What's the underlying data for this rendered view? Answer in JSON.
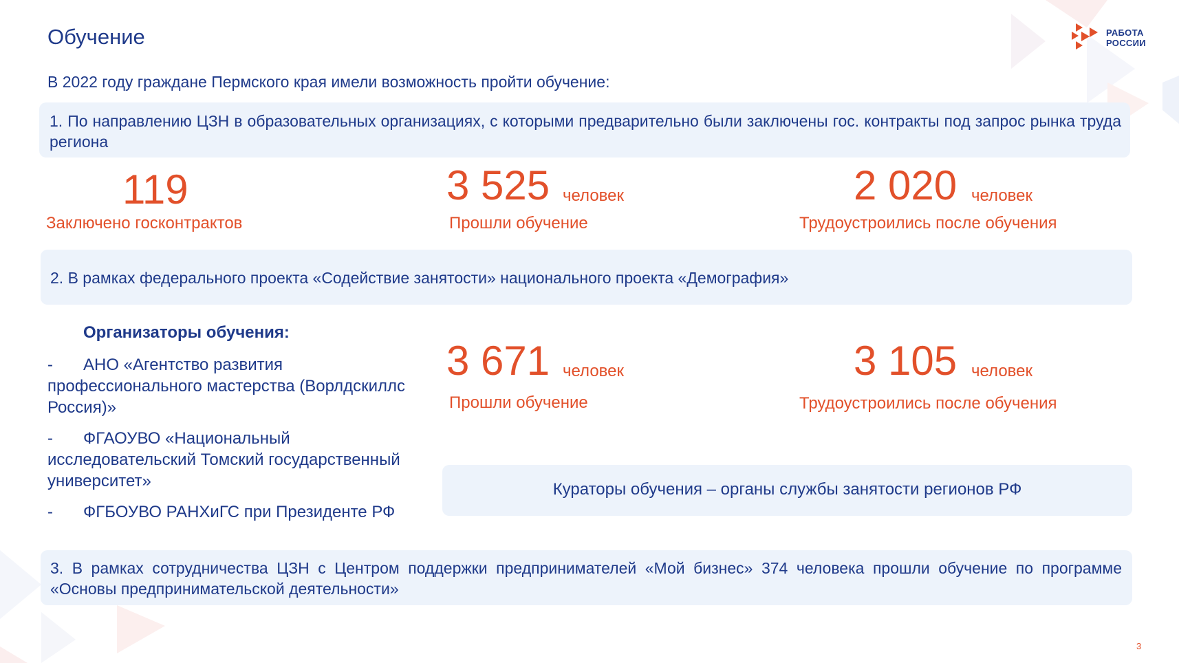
{
  "header": {
    "title": "Обучение",
    "logo_line1": "РАБОТА",
    "logo_line2": "РОССИИ"
  },
  "intro": "В 2022 году граждане Пермского края имели возможность пройти обучение:",
  "section1": {
    "text": "1.  По направлению ЦЗН в образовательных организациях, с которыми предварительно были заключены гос. контракты под запрос рынка труда региона",
    "stats": [
      {
        "value": "119",
        "unit": "",
        "caption": "Заключено госконтрактов"
      },
      {
        "value": "3 525",
        "unit": "человек",
        "caption": "Прошли обучение"
      },
      {
        "value": "2 020",
        "unit": "человек",
        "caption": "Трудоустроились после обучения"
      }
    ]
  },
  "section2": {
    "text": "2.  В рамках федерального проекта «Содействие занятости» национального проекта «Демография»",
    "organizers_heading": "Организаторы обучения:",
    "organizers": [
      "АНО «Агентство развития профессионального мастерства (Ворлдскиллс Россия)»",
      "ФГАОУВО «Национальный исследовательский Томский государственный университет»",
      "ФГБОУВО РАНХиГС при Президенте РФ"
    ],
    "dash": "-",
    "stats": [
      {
        "value": "3 671",
        "unit": "человек",
        "caption": "Прошли обучение"
      },
      {
        "value": "3 105",
        "unit": "человек",
        "caption": "Трудоустроились после обучения"
      }
    ],
    "curators": "Кураторы обучения – органы службы занятости регионов РФ"
  },
  "section3": {
    "text": "3.  В рамках сотрудничества ЦЗН с Центром поддержки предпринимателей «Мой бизнес» 374 человека прошли обучение по программе «Основы предпринимательской деятельности»"
  },
  "footer": {
    "page_number": "3"
  },
  "colors": {
    "accent": "#e2502a",
    "text": "#1f3a8a",
    "panel": "#edf3fb"
  }
}
